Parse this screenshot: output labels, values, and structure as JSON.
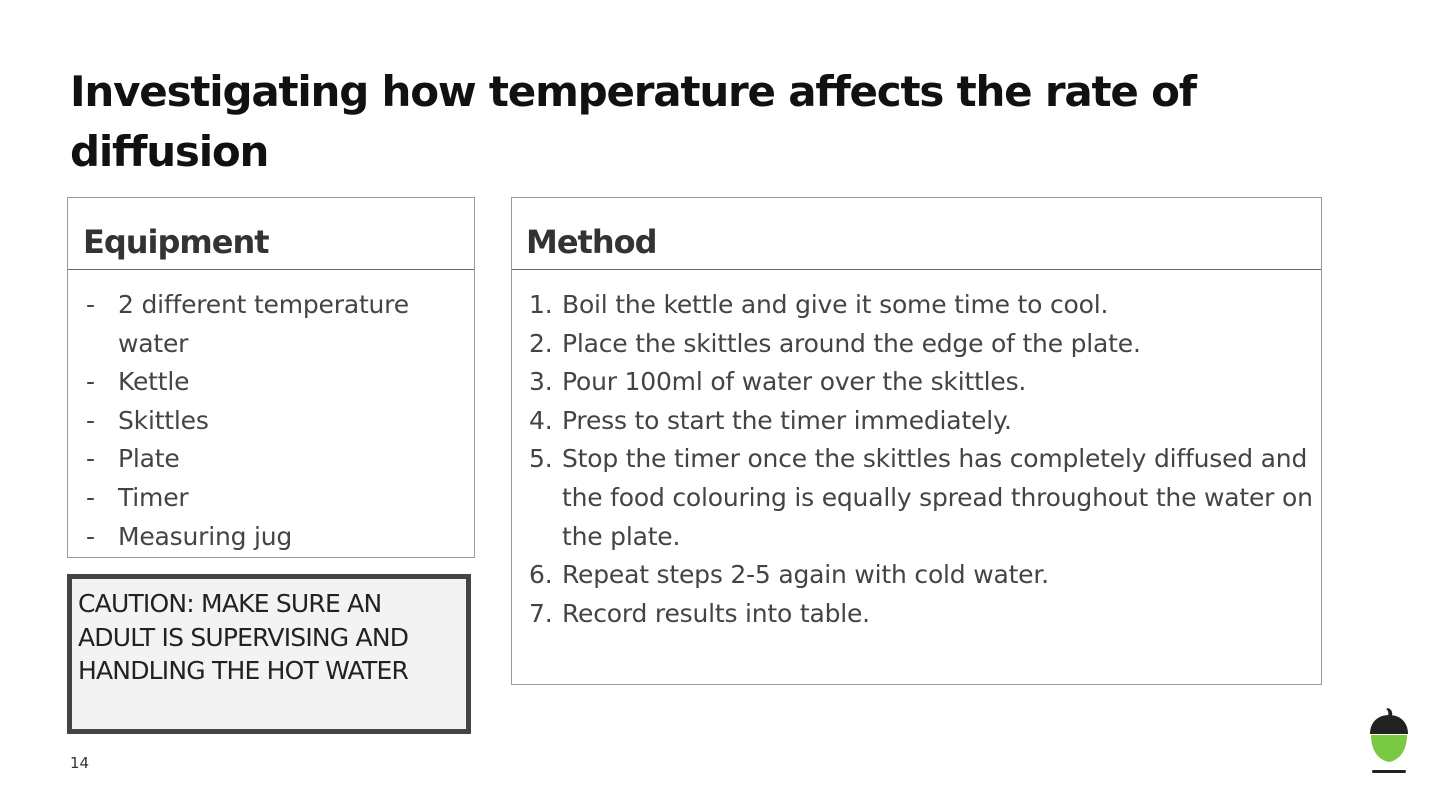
{
  "slide": {
    "title": "Investigating how temperature affects the rate of diffusion",
    "page_number": "14"
  },
  "equipment": {
    "heading": "Equipment",
    "items": [
      "2 different temperature water",
      "Kettle",
      "Skittles",
      "Plate",
      "Timer",
      "Measuring jug"
    ]
  },
  "method": {
    "heading": "Method",
    "steps": [
      "Boil the kettle and give it some time to cool.",
      "Place the skittles around the edge of the plate.",
      "Pour 100ml of water over the skittles.",
      "Press to start the timer immediately.",
      "Stop the timer once the skittles has completely diffused and the food colouring is equally spread throughout the water on the plate.",
      "Repeat steps 2-5 again with cold water.",
      "Record results into table."
    ]
  },
  "caution": {
    "text": "CAUTION: MAKE SURE AN ADULT IS SUPERVISING AND HANDLING THE HOT WATER"
  },
  "branding": {
    "logo_icon": "acorn-icon",
    "accent_color": "#7ac943"
  }
}
